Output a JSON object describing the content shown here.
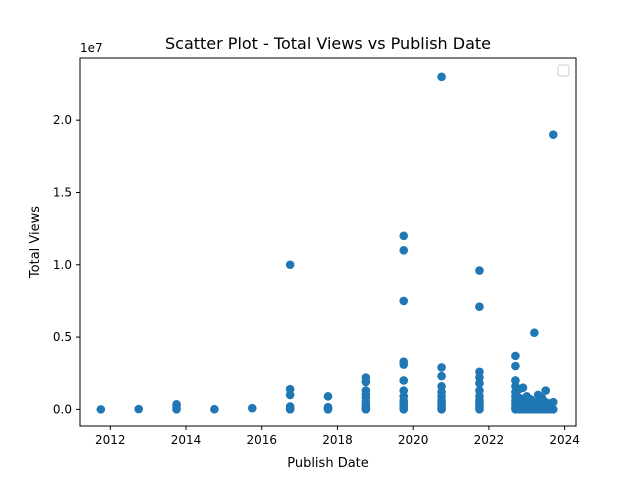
{
  "chart_data": {
    "type": "scatter",
    "title": "Scatter Plot - Total Views vs Publish Date",
    "xlabel": "Publish Date",
    "ylabel": "Total Views",
    "y_offset_label": "1e7",
    "xlim": [
      2011.2,
      2024.3
    ],
    "ylim": [
      -1150000,
      24300000
    ],
    "x_ticks": [
      {
        "value": 2012,
        "label": "2012"
      },
      {
        "value": 2014,
        "label": "2014"
      },
      {
        "value": 2016,
        "label": "2016"
      },
      {
        "value": 2018,
        "label": "2018"
      },
      {
        "value": 2020,
        "label": "2020"
      },
      {
        "value": 2022,
        "label": "2022"
      },
      {
        "value": 2024,
        "label": "2024"
      }
    ],
    "y_ticks": [
      {
        "value": 0,
        "label": "0.0"
      },
      {
        "value": 5000000,
        "label": "0.5"
      },
      {
        "value": 10000000,
        "label": "1.0"
      },
      {
        "value": 15000000,
        "label": "1.5"
      },
      {
        "value": 20000000,
        "label": "2.0"
      }
    ],
    "grid": false,
    "legend": "top-right",
    "point_color": "#1f77b4",
    "series": [
      {
        "points": [
          [
            2011.75,
            0
          ],
          [
            2012.75,
            20000
          ],
          [
            2013.75,
            0
          ],
          [
            2013.75,
            200000
          ],
          [
            2013.75,
            350000
          ],
          [
            2014.75,
            10000
          ],
          [
            2015.75,
            80000
          ],
          [
            2016.75,
            0
          ],
          [
            2016.75,
            50000
          ],
          [
            2016.75,
            200000
          ],
          [
            2016.75,
            1000000
          ],
          [
            2016.75,
            1400000
          ],
          [
            2016.75,
            10000000
          ],
          [
            2017.75,
            0
          ],
          [
            2017.75,
            50000
          ],
          [
            2017.75,
            150000
          ],
          [
            2017.75,
            900000
          ],
          [
            2018.75,
            0
          ],
          [
            2018.75,
            50000
          ],
          [
            2018.75,
            150000
          ],
          [
            2018.75,
            300000
          ],
          [
            2018.75,
            500000
          ],
          [
            2018.75,
            800000
          ],
          [
            2018.75,
            1000000
          ],
          [
            2018.75,
            1300000
          ],
          [
            2018.75,
            1900000
          ],
          [
            2018.75,
            2200000
          ],
          [
            2019.75,
            0
          ],
          [
            2019.75,
            100000
          ],
          [
            2019.75,
            250000
          ],
          [
            2019.75,
            400000
          ],
          [
            2019.75,
            600000
          ],
          [
            2019.75,
            900000
          ],
          [
            2019.75,
            1300000
          ],
          [
            2019.75,
            2000000
          ],
          [
            2019.75,
            3100000
          ],
          [
            2019.75,
            3300000
          ],
          [
            2019.75,
            7500000
          ],
          [
            2019.75,
            11000000
          ],
          [
            2019.75,
            12000000
          ],
          [
            2020.75,
            0
          ],
          [
            2020.75,
            100000
          ],
          [
            2020.75,
            250000
          ],
          [
            2020.75,
            400000
          ],
          [
            2020.75,
            600000
          ],
          [
            2020.75,
            900000
          ],
          [
            2020.75,
            1200000
          ],
          [
            2020.75,
            1600000
          ],
          [
            2020.75,
            2300000
          ],
          [
            2020.75,
            2900000
          ],
          [
            2020.75,
            23000000
          ],
          [
            2021.75,
            0
          ],
          [
            2021.75,
            100000
          ],
          [
            2021.75,
            200000
          ],
          [
            2021.75,
            400000
          ],
          [
            2021.75,
            600000
          ],
          [
            2021.75,
            900000
          ],
          [
            2021.75,
            1300000
          ],
          [
            2021.75,
            1800000
          ],
          [
            2021.75,
            2200000
          ],
          [
            2021.75,
            2600000
          ],
          [
            2021.75,
            7100000
          ],
          [
            2021.75,
            9600000
          ],
          [
            2022.7,
            0
          ],
          [
            2022.7,
            150000
          ],
          [
            2022.7,
            350000
          ],
          [
            2022.7,
            600000
          ],
          [
            2022.7,
            900000
          ],
          [
            2022.7,
            1200000
          ],
          [
            2022.7,
            1600000
          ],
          [
            2022.7,
            2000000
          ],
          [
            2022.7,
            3000000
          ],
          [
            2022.7,
            3700000
          ],
          [
            2022.8,
            0
          ],
          [
            2022.8,
            300000
          ],
          [
            2022.8,
            800000
          ],
          [
            2022.8,
            1400000
          ],
          [
            2022.9,
            0
          ],
          [
            2022.9,
            200000
          ],
          [
            2022.9,
            600000
          ],
          [
            2022.9,
            1500000
          ],
          [
            2023.0,
            0
          ],
          [
            2023.0,
            300000
          ],
          [
            2023.0,
            900000
          ],
          [
            2023.1,
            0
          ],
          [
            2023.1,
            200000
          ],
          [
            2023.1,
            700000
          ],
          [
            2023.2,
            0
          ],
          [
            2023.2,
            300000
          ],
          [
            2023.2,
            5300000
          ],
          [
            2023.3,
            0
          ],
          [
            2023.3,
            200000
          ],
          [
            2023.3,
            600000
          ],
          [
            2023.3,
            1000000
          ],
          [
            2023.4,
            0
          ],
          [
            2023.4,
            300000
          ],
          [
            2023.4,
            800000
          ],
          [
            2023.5,
            0
          ],
          [
            2023.5,
            200000
          ],
          [
            2023.5,
            500000
          ],
          [
            2023.5,
            1300000
          ],
          [
            2023.6,
            0
          ],
          [
            2023.6,
            150000
          ],
          [
            2023.6,
            400000
          ],
          [
            2023.7,
            0
          ],
          [
            2023.7,
            500000
          ],
          [
            2023.7,
            19000000
          ]
        ]
      }
    ]
  }
}
